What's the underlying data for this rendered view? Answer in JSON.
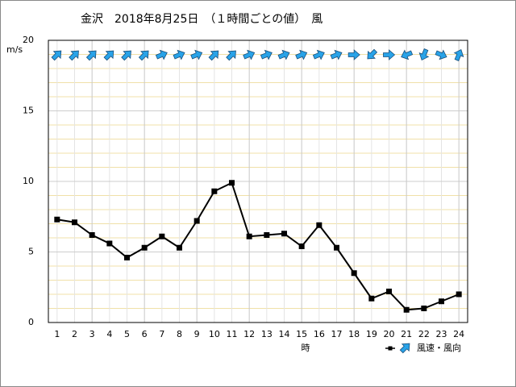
{
  "chart_data": {
    "type": "line",
    "title": "金沢　2018年8月25日　（１時間ごとの値）　風",
    "y_label": "m/s",
    "x_label": "時",
    "categories": [
      "1",
      "2",
      "3",
      "4",
      "5",
      "6",
      "7",
      "8",
      "9",
      "10",
      "11",
      "12",
      "13",
      "14",
      "15",
      "16",
      "17",
      "18",
      "19",
      "20",
      "21",
      "22",
      "23",
      "24"
    ],
    "series": [
      {
        "name": "風速・風向",
        "color": "#000000",
        "values": [
          7.3,
          7.1,
          6.2,
          5.6,
          4.6,
          5.3,
          6.1,
          5.3,
          7.2,
          9.3,
          9.9,
          6.1,
          6.2,
          6.3,
          5.4,
          6.9,
          5.3,
          3.5,
          1.7,
          2.2,
          0.9,
          1.0,
          1.5,
          2.0
        ],
        "wind_direction_degrees": [
          45,
          45,
          45,
          45,
          45,
          45,
          67.5,
          67.5,
          67.5,
          45,
          45,
          67.5,
          67.5,
          67.5,
          67.5,
          67.5,
          67.5,
          90,
          225,
          90,
          247.5,
          202.5,
          112.5,
          22.5
        ],
        "arrow_color": "#29a3e8"
      }
    ],
    "ylim": [
      0,
      20
    ],
    "yticks": [
      0,
      5,
      10,
      15,
      20
    ],
    "grid": true
  }
}
